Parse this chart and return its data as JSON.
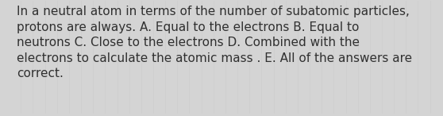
{
  "lines": [
    "In a neutral atom in terms of the number of subatomic particles,",
    "protons are always. A. Equal to the electrons B. Equal to",
    "neutrons C. Close to the electrons D. Combined with the",
    "electrons to calculate the atomic mass . E. All of the answers are",
    "correct."
  ],
  "background_color": "#d4d4d4",
  "text_color": "#303030",
  "font_size": 11.0,
  "fig_width": 5.58,
  "fig_height": 1.46,
  "dpi": 100
}
